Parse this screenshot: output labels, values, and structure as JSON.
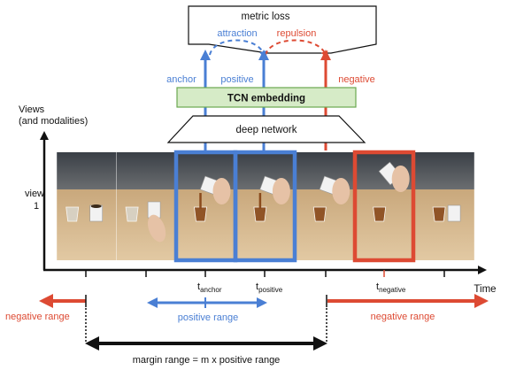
{
  "labels": {
    "metric_loss": "metric loss",
    "attraction": "attraction",
    "repulsion": "repulsion",
    "anchor": "anchor",
    "positive": "positive",
    "negative": "negative",
    "tcn_embedding": "TCN embedding",
    "deep_network": "deep network",
    "views_line1": "Views",
    "views_line2": "(and modalities)",
    "view_line1": "view",
    "view_line2": "1",
    "time": "Time",
    "t": "t",
    "sub_anchor": "anchor",
    "sub_positive": "positive",
    "sub_negative": "negative",
    "positive_range": "positive range",
    "negative_range_left": "negative range",
    "negative_range_right": "negative range",
    "margin_range": "margin range = m x positive range"
  },
  "frames": [
    {
      "id": 1,
      "scene": "cup-and-glass-idle"
    },
    {
      "id": 2,
      "scene": "hand-reaching-cup"
    },
    {
      "id": 3,
      "scene": "pouring-anchor"
    },
    {
      "id": 4,
      "scene": "pouring-positive"
    },
    {
      "id": 5,
      "scene": "pouring-late"
    },
    {
      "id": 6,
      "scene": "cup-lifted-negative"
    },
    {
      "id": 7,
      "scene": "cup-and-glass-done"
    }
  ],
  "colors": {
    "blue": "#4a7fd4",
    "red": "#dd4a33",
    "embedding_fill": "#d6ebc7",
    "embedding_border": "#6aa84f",
    "black": "#111111"
  }
}
